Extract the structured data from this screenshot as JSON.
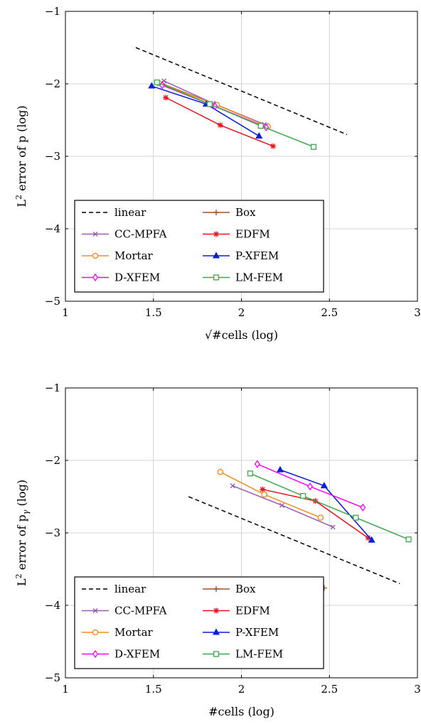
{
  "chart_data": [
    {
      "type": "line",
      "title": "",
      "xlabel": "√#cells (log)",
      "ylabel": "L² error of p (log)",
      "xlim": [
        1,
        3
      ],
      "ylim": [
        -5,
        -1
      ],
      "xticks": [
        1,
        1.5,
        2,
        2.5,
        3
      ],
      "yticks": [
        -5,
        -4,
        -3,
        -2,
        -1
      ],
      "grid": true,
      "legend_position": "lower-left",
      "series": [
        {
          "name": "linear",
          "color": "#000000",
          "dash": true,
          "marker": "none",
          "x": [
            1.4,
            2.6
          ],
          "y": [
            -1.5,
            -2.7
          ]
        },
        {
          "name": "Box",
          "color": "#a0522d",
          "dash": false,
          "marker": "plus",
          "x": [
            1.55,
            1.85,
            2.15
          ],
          "y": [
            -2.0,
            -2.28,
            -2.58
          ]
        },
        {
          "name": "CC-MPFA",
          "color": "#9b59b6",
          "dash": false,
          "marker": "x",
          "x": [
            1.56,
            1.84,
            2.13
          ],
          "y": [
            -1.96,
            -2.27,
            -2.56
          ]
        },
        {
          "name": "EDFM",
          "color": "#e8141c",
          "dash": false,
          "marker": "star",
          "x": [
            1.57,
            1.88,
            2.18
          ],
          "y": [
            -2.19,
            -2.57,
            -2.86
          ]
        },
        {
          "name": "Mortar",
          "color": "#f28e1c",
          "dash": false,
          "marker": "circle",
          "x": [
            1.53,
            1.86,
            2.15
          ],
          "y": [
            -1.99,
            -2.29,
            -2.59
          ]
        },
        {
          "name": "P-XFEM",
          "color": "#0b1fd8",
          "dash": false,
          "marker": "triangle",
          "x": [
            1.49,
            1.8,
            2.1
          ],
          "y": [
            -2.03,
            -2.28,
            -2.72
          ]
        },
        {
          "name": "D-XFEM",
          "color": "#ff00ff",
          "dash": false,
          "marker": "diamond",
          "x": [
            1.55,
            1.85,
            2.14
          ],
          "y": [
            -2.02,
            -2.31,
            -2.6
          ]
        },
        {
          "name": "LM-FEM",
          "color": "#3aa84a",
          "dash": false,
          "marker": "square",
          "x": [
            1.52,
            1.82,
            2.11,
            2.41
          ],
          "y": [
            -1.98,
            -2.28,
            -2.58,
            -2.87
          ]
        }
      ],
      "legend_order": [
        "linear",
        "Box",
        "CC-MPFA",
        "EDFM",
        "Mortar",
        "P-XFEM",
        "D-XFEM",
        "LM-FEM"
      ]
    },
    {
      "type": "line",
      "title": "",
      "xlabel": "#cells (log)",
      "ylabel": "L² error of pγ (log)",
      "xlim": [
        1,
        3
      ],
      "ylim": [
        -5,
        -1
      ],
      "xticks": [
        1,
        1.5,
        2,
        2.5,
        3
      ],
      "yticks": [
        -5,
        -4,
        -3,
        -2,
        -1
      ],
      "grid": true,
      "legend_position": "lower-left",
      "series": [
        {
          "name": "linear",
          "color": "#000000",
          "dash": true,
          "marker": "none",
          "x": [
            1.7,
            2.9
          ],
          "y": [
            -2.5,
            -3.7
          ]
        },
        {
          "name": "Box",
          "color": "#a0522d",
          "dash": false,
          "marker": "plus",
          "x": [
            2.47
          ],
          "y": [
            -3.76
          ]
        },
        {
          "name": "CC-MPFA",
          "color": "#9b59b6",
          "dash": false,
          "marker": "x",
          "x": [
            1.95,
            2.23,
            2.52
          ],
          "y": [
            -2.35,
            -2.62,
            -2.92
          ]
        },
        {
          "name": "EDFM",
          "color": "#e8141c",
          "dash": false,
          "marker": "star",
          "x": [
            2.12,
            2.42,
            2.72
          ],
          "y": [
            -2.4,
            -2.56,
            -3.07
          ]
        },
        {
          "name": "Mortar",
          "color": "#f28e1c",
          "dash": false,
          "marker": "circle",
          "x": [
            1.88,
            2.13,
            2.45
          ],
          "y": [
            -2.16,
            -2.47,
            -2.79
          ]
        },
        {
          "name": "P-XFEM",
          "color": "#0b1fd8",
          "dash": false,
          "marker": "triangle",
          "x": [
            2.22,
            2.47,
            2.74
          ],
          "y": [
            -2.13,
            -2.35,
            -3.1
          ]
        },
        {
          "name": "D-XFEM",
          "color": "#ff00ff",
          "dash": false,
          "marker": "diamond",
          "x": [
            2.09,
            2.39,
            2.69
          ],
          "y": [
            -2.05,
            -2.36,
            -2.65
          ]
        },
        {
          "name": "LM-FEM",
          "color": "#3aa84a",
          "dash": false,
          "marker": "square",
          "x": [
            2.05,
            2.35,
            2.65,
            2.95
          ],
          "y": [
            -2.18,
            -2.49,
            -2.79,
            -3.09
          ]
        }
      ],
      "legend_order": [
        "linear",
        "Box",
        "CC-MPFA",
        "EDFM",
        "Mortar",
        "P-XFEM",
        "D-XFEM",
        "LM-FEM"
      ]
    }
  ]
}
